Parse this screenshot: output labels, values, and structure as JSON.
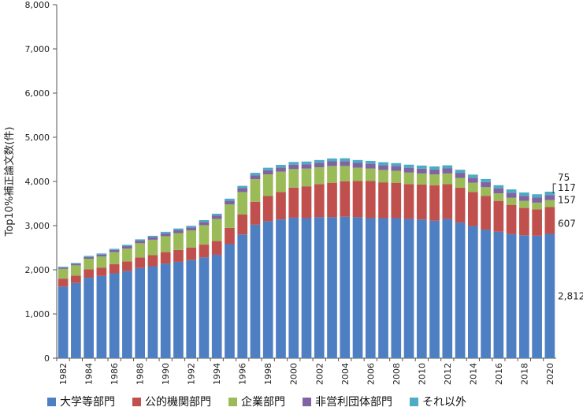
{
  "chart_data": {
    "type": "bar",
    "stacked": true,
    "title": "",
    "xlabel": "",
    "ylabel": "Top10%補正論文数(件)",
    "ylim": [
      0,
      8000
    ],
    "ytick_step": 1000,
    "ytick_labels": [
      "0",
      "1,000",
      "2,000",
      "3,000",
      "4,000",
      "5,000",
      "6,000",
      "7,000",
      "8,000"
    ],
    "categories": [
      "1982",
      "1983",
      "1984",
      "1985",
      "1986",
      "1987",
      "1988",
      "1989",
      "1990",
      "1991",
      "1992",
      "1993",
      "1994",
      "1995",
      "1996",
      "1997",
      "1998",
      "1999",
      "2000",
      "2001",
      "2002",
      "2003",
      "2004",
      "2005",
      "2006",
      "2007",
      "2008",
      "2009",
      "2010",
      "2011",
      "2012",
      "2013",
      "2014",
      "2015",
      "2016",
      "2017",
      "2018",
      "2019",
      "2020"
    ],
    "xtick_labels": [
      "1982",
      "",
      "1984",
      "",
      "1986",
      "",
      "1988",
      "",
      "1990",
      "",
      "1992",
      "",
      "1994",
      "",
      "1996",
      "",
      "1998",
      "",
      "2000",
      "",
      "2002",
      "",
      "2004",
      "",
      "2006",
      "",
      "2008",
      "",
      "2010",
      "",
      "2012",
      "",
      "2014",
      "",
      "2016",
      "",
      "2018",
      "",
      "2020"
    ],
    "series": [
      {
        "name": "大学等部門",
        "color": "#4e7fc2",
        "values": [
          1620,
          1700,
          1820,
          1860,
          1920,
          1970,
          2040,
          2080,
          2140,
          2180,
          2220,
          2280,
          2340,
          2580,
          2800,
          3020,
          3100,
          3140,
          3180,
          3170,
          3190,
          3190,
          3200,
          3190,
          3170,
          3170,
          3170,
          3150,
          3140,
          3110,
          3150,
          3070,
          2990,
          2910,
          2860,
          2810,
          2780,
          2770,
          2812
        ]
      },
      {
        "name": "公的機関部門",
        "color": "#c0504d",
        "values": [
          180,
          170,
          190,
          190,
          210,
          220,
          240,
          250,
          260,
          270,
          280,
          290,
          310,
          370,
          450,
          520,
          570,
          620,
          680,
          720,
          750,
          780,
          800,
          820,
          840,
          810,
          800,
          790,
          790,
          800,
          790,
          790,
          770,
          760,
          700,
          660,
          620,
          600,
          607
        ]
      },
      {
        "name": "企業部門",
        "color": "#9bbb59",
        "values": [
          220,
          230,
          240,
          250,
          270,
          290,
          320,
          350,
          360,
          380,
          390,
          440,
          500,
          530,
          510,
          510,
          490,
          460,
          420,
          400,
          380,
          380,
          350,
          300,
          280,
          280,
          270,
          260,
          250,
          250,
          240,
          220,
          210,
          200,
          170,
          160,
          160,
          150,
          157
        ]
      },
      {
        "name": "非営利団体部門",
        "color": "#8064a2",
        "values": [
          30,
          35,
          40,
          45,
          50,
          55,
          60,
          60,
          65,
          70,
          70,
          75,
          80,
          85,
          90,
          90,
          95,
          95,
          100,
          100,
          105,
          105,
          110,
          110,
          110,
          110,
          110,
          110,
          110,
          110,
          115,
          115,
          115,
          115,
          115,
          115,
          115,
          115,
          117
        ]
      },
      {
        "name": "それ以外",
        "color": "#4bacc6",
        "values": [
          20,
          20,
          25,
          25,
          25,
          30,
          30,
          30,
          35,
          35,
          35,
          40,
          40,
          45,
          50,
          55,
          55,
          60,
          60,
          60,
          60,
          65,
          65,
          65,
          65,
          65,
          65,
          70,
          70,
          70,
          70,
          70,
          70,
          70,
          70,
          75,
          75,
          75,
          75
        ]
      }
    ],
    "annotations": [
      "75",
      "117",
      "157",
      "607",
      "2,812"
    ],
    "legend_position": "bottom"
  }
}
